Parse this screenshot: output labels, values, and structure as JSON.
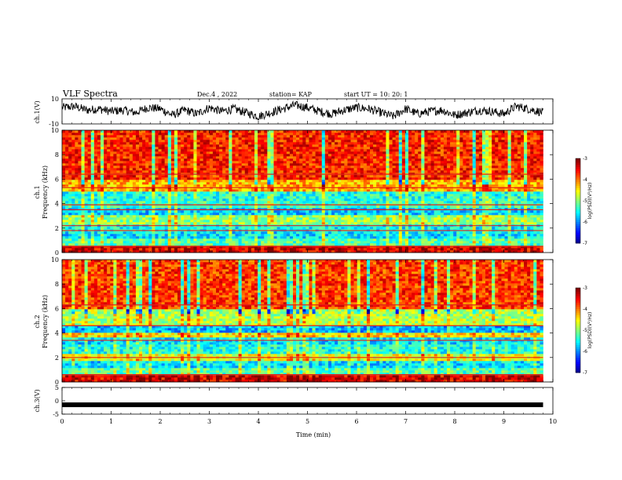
{
  "header": {
    "title": "VLF Spectra",
    "date": "Dec.4 , 2022",
    "station": "station= KAP",
    "start": "start UT =  10: 20: 1"
  },
  "chart_data": [
    {
      "type": "line",
      "ylabel": "ch.1(V)",
      "ylim": [
        -10,
        10
      ],
      "yticks": [
        "10",
        "-10"
      ],
      "xlim": [
        0,
        10
      ],
      "series": [
        {
          "x": [
            0,
            0.25,
            0.5,
            0.75,
            1,
            1.25,
            1.5,
            1.75,
            2,
            2.25,
            2.5,
            2.75,
            3,
            3.25,
            3.5,
            3.75,
            4,
            4.25,
            4.5,
            4.75,
            5,
            5.25,
            5.5,
            5.75,
            6,
            6.25,
            6.5,
            6.75,
            7,
            7.25,
            7.5,
            7.75,
            8,
            8.25,
            8.5,
            8.75,
            9,
            9.25,
            9.5,
            9.8
          ],
          "values": [
            3,
            4,
            1,
            2,
            0,
            1,
            -1,
            3,
            2,
            -3,
            1,
            -2,
            3,
            0,
            2,
            -1,
            -4,
            -1,
            2,
            5,
            3,
            0,
            -2,
            1,
            3,
            2,
            -1,
            -4,
            2,
            -2,
            0,
            1,
            -3,
            -1,
            1,
            0,
            -2,
            4,
            2,
            -1
          ]
        }
      ]
    },
    {
      "type": "heatmap",
      "ylabel": "ch.1\nFrequency (kHz)",
      "ylim": [
        0,
        10
      ],
      "yticks": [
        "0",
        "2",
        "4",
        "6",
        "8",
        "10"
      ],
      "xlim": [
        0,
        9.8
      ],
      "zlim": [
        -7,
        -3
      ],
      "colorbar_label": "log(PSD)(V²/Hz)",
      "colorbar_ticks": [
        "-3",
        "-4",
        "-5",
        "-6",
        "-7"
      ],
      "bands": [
        {
          "from": 0,
          "to": 0.6,
          "value": -3.4
        },
        {
          "from": 0.6,
          "to": 1.2,
          "value": -5.2
        },
        {
          "from": 1.2,
          "to": 1.8,
          "value": -5.6
        },
        {
          "from": 1.8,
          "to": 2.4,
          "value": -5.5
        },
        {
          "from": 2.4,
          "to": 3.0,
          "value": -4.9
        },
        {
          "from": 3.0,
          "to": 3.6,
          "value": -5.7
        },
        {
          "from": 3.6,
          "to": 4.2,
          "value": -5.3
        },
        {
          "from": 4.2,
          "to": 5.0,
          "value": -5.4
        },
        {
          "from": 5.0,
          "to": 6.0,
          "value": -4.2
        },
        {
          "from": 6.0,
          "to": 10.0,
          "value": -3.6
        }
      ],
      "lines_khz": [
        0.5,
        1.8,
        2.2,
        3.5,
        3.9,
        5.3,
        6.4
      ]
    },
    {
      "type": "heatmap",
      "ylabel": "ch.2\nFrequency (kHz)",
      "ylim": [
        0,
        10
      ],
      "yticks": [
        "0",
        "2",
        "4",
        "6",
        "8",
        "10"
      ],
      "xlim": [
        0,
        9.8
      ],
      "zlim": [
        -7,
        -3
      ],
      "colorbar_label": "log(PSD)(V²/Hz)",
      "colorbar_ticks": [
        "-3",
        "-4",
        "-5",
        "-6",
        "-7"
      ],
      "bands": [
        {
          "from": 0,
          "to": 0.6,
          "value": -3.4
        },
        {
          "from": 0.6,
          "to": 1.2,
          "value": -5.2
        },
        {
          "from": 1.2,
          "to": 1.8,
          "value": -5.6
        },
        {
          "from": 1.8,
          "to": 2.4,
          "value": -4.6
        },
        {
          "from": 2.4,
          "to": 3.0,
          "value": -5.4
        },
        {
          "from": 3.0,
          "to": 3.6,
          "value": -5.6
        },
        {
          "from": 3.6,
          "to": 4.0,
          "value": -4.4
        },
        {
          "from": 4.0,
          "to": 4.6,
          "value": -5.8
        },
        {
          "from": 4.6,
          "to": 6.0,
          "value": -4.8
        },
        {
          "from": 6.0,
          "to": 10.0,
          "value": -3.7
        }
      ],
      "lines_khz": [
        0.6,
        2.0,
        3.4,
        4.6,
        6.3
      ]
    },
    {
      "type": "line",
      "ylabel": "ch.3(V)",
      "ylim": [
        -5,
        5
      ],
      "yticks": [
        "5",
        "0",
        "-5"
      ],
      "xlim": [
        0,
        10
      ],
      "xlabel": "Time (min)",
      "xticks": [
        "0",
        "1",
        "2",
        "3",
        "4",
        "5",
        "6",
        "7",
        "8",
        "9",
        "10"
      ],
      "series": [
        {
          "x": [
            0,
            9.8
          ],
          "values": [
            -1.5,
            -1.5
          ]
        }
      ]
    }
  ]
}
